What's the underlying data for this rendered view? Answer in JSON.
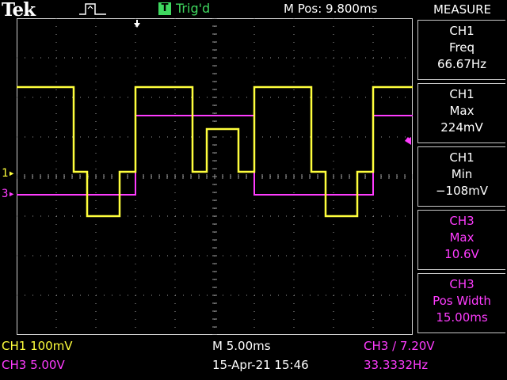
{
  "header": {
    "brand": "Tek",
    "trigger_badge": "T",
    "trigger_status": "Trig'd",
    "horizontal_position": "M Pos: 9.800ms"
  },
  "measure_panel": {
    "title": "MEASURE",
    "items": [
      {
        "source": "CH1",
        "type": "Freq",
        "value": "66.67Hz",
        "channel": "CH1"
      },
      {
        "source": "CH1",
        "type": "Max",
        "value": "224mV",
        "channel": "CH1"
      },
      {
        "source": "CH1",
        "type": "Min",
        "value": "−108mV",
        "channel": "CH1"
      },
      {
        "source": "CH3",
        "type": "Max",
        "value": "10.6V",
        "channel": "CH3"
      },
      {
        "source": "CH3",
        "type": "Pos Width",
        "value": "15.00ms",
        "channel": "CH3"
      }
    ]
  },
  "footer": {
    "ch1_scale": "CH1  100mV",
    "ch3_scale": "CH3  5.00V",
    "timebase": "M 5.00ms",
    "datetime": "15-Apr-21 15:46",
    "trigger_setting": "CH3 ∕ 7.20V",
    "trigger_frequency": "33.3332Hz"
  },
  "channel_markers": {
    "ch1": "1",
    "ch3": "3"
  },
  "colors": {
    "ch1": "#ffff3c",
    "ch3": "#ff3cff",
    "trigger": "#3fd85f",
    "grid": "#9a9a9a",
    "background": "#000000"
  }
}
